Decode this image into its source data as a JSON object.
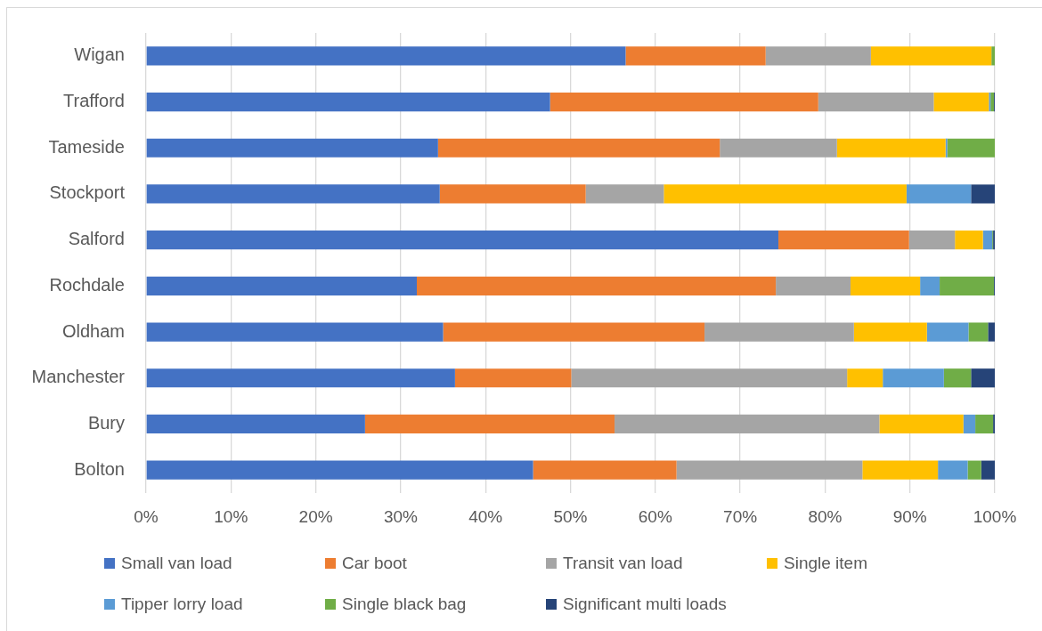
{
  "chart_data": {
    "type": "bar",
    "orientation": "horizontal",
    "stacked": true,
    "categories": [
      "Wigan",
      "Trafford",
      "Tameside",
      "Stockport",
      "Salford",
      "Rochdale",
      "Oldham",
      "Manchester",
      "Bury",
      "Bolton"
    ],
    "series": [
      {
        "name": "Small van load",
        "color": "#4472c4",
        "values": [
          56.5,
          47.6,
          34.4,
          34.6,
          74.5,
          31.9,
          35.0,
          36.4,
          25.8,
          45.6
        ]
      },
      {
        "name": "Car boot",
        "color": "#ed7d31",
        "values": [
          16.5,
          31.6,
          33.2,
          17.2,
          15.4,
          42.3,
          30.8,
          13.7,
          29.4,
          16.9
        ]
      },
      {
        "name": "Transit van load",
        "color": "#a5a5a5",
        "values": [
          12.4,
          13.6,
          13.8,
          9.2,
          5.4,
          8.8,
          17.6,
          32.5,
          31.2,
          21.9
        ]
      },
      {
        "name": "Single item",
        "color": "#ffc000",
        "values": [
          14.2,
          6.5,
          12.8,
          28.6,
          3.3,
          8.2,
          8.6,
          4.2,
          9.9,
          8.9
        ]
      },
      {
        "name": "Tipper lorry load",
        "color": "#5b9bd5",
        "values": [
          0,
          0.2,
          0.2,
          7.6,
          1.1,
          2.3,
          4.9,
          7.2,
          1.4,
          3.5
        ]
      },
      {
        "name": "Single black bag",
        "color": "#70ad47",
        "values": [
          0.4,
          0.4,
          5.6,
          0,
          0.1,
          6.4,
          2.3,
          3.2,
          2.1,
          1.6
        ]
      },
      {
        "name": "Significant multi loads",
        "color": "#264478",
        "values": [
          0,
          0.1,
          0,
          2.8,
          0.2,
          0.1,
          0.8,
          2.8,
          0.2,
          1.6
        ]
      }
    ],
    "xlim": [
      0,
      100
    ],
    "xticks": [
      {
        "value": 0,
        "label": "0%"
      },
      {
        "value": 10,
        "label": "10%"
      },
      {
        "value": 20,
        "label": "20%"
      },
      {
        "value": 30,
        "label": "30%"
      },
      {
        "value": 40,
        "label": "40%"
      },
      {
        "value": 50,
        "label": "50%"
      },
      {
        "value": 60,
        "label": "60%"
      },
      {
        "value": 70,
        "label": "70%"
      },
      {
        "value": 80,
        "label": "80%"
      },
      {
        "value": 90,
        "label": "90%"
      },
      {
        "value": 100,
        "label": "100%"
      }
    ],
    "grid": "x",
    "legend": "bottom"
  }
}
